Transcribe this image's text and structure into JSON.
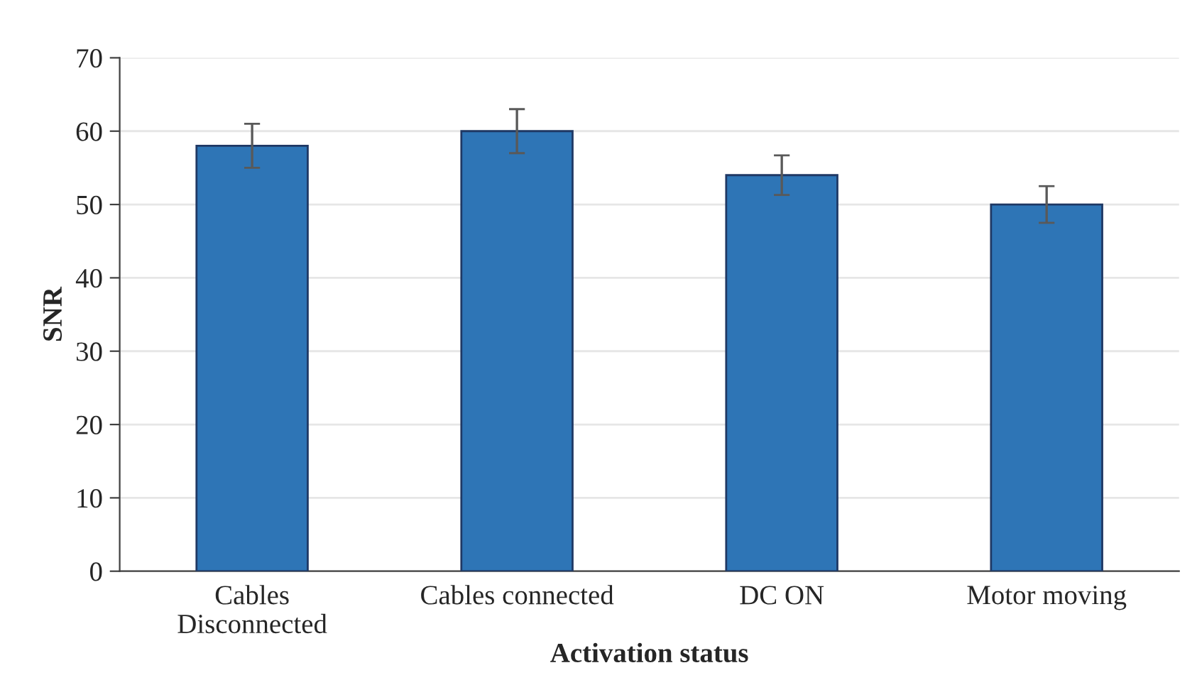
{
  "chart_data": {
    "type": "bar",
    "xlabel": "Activation status",
    "ylabel": "SNR",
    "categories": [
      "Cables\nDisconnected",
      "Cables connected",
      "DC ON",
      "Motor moving"
    ],
    "values": [
      58,
      60,
      54,
      50
    ],
    "errors": [
      3,
      3,
      2.7,
      2.5
    ],
    "color": "#2e75b6",
    "ylim": [
      0,
      70
    ],
    "yticks": [
      0,
      10,
      20,
      30,
      40,
      50,
      60,
      70
    ],
    "grid": "y",
    "legend": false
  }
}
